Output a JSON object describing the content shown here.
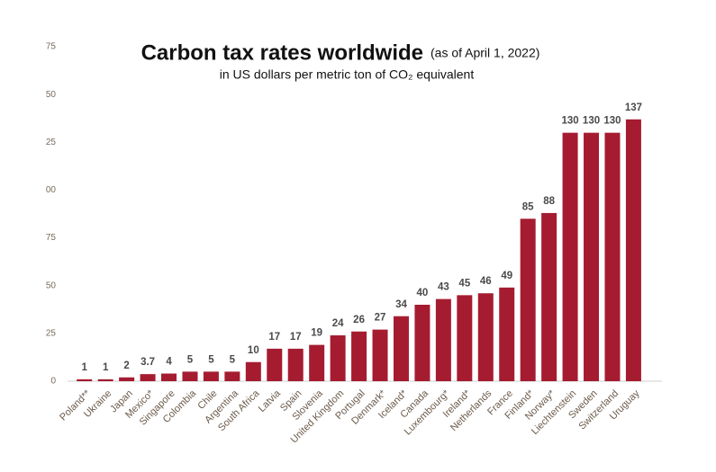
{
  "chart_data": {
    "type": "bar",
    "title": "Carbon tax rates worldwide",
    "title_note": "(as of April 1, 2022)",
    "subtitle": "in US dollars per metric ton of CO₂ equivalent",
    "categories": [
      "Poland**",
      "Ukraine",
      "Japan",
      "Mexico*",
      "Singapore",
      "Colombia",
      "Chile",
      "Argentina",
      "South Africa",
      "Latvia",
      "Spain",
      "Slovenia",
      "United Kingdom",
      "Portugal",
      "Denmark*",
      "Iceland*",
      "Canada",
      "Luxembourg*",
      "Ireland*",
      "Netherlands",
      "France",
      "Finland*",
      "Norway*",
      "Liechtenstein",
      "Sweden",
      "Switzerland",
      "Uruguay"
    ],
    "values": [
      1,
      1,
      2,
      3.7,
      4,
      5,
      5,
      5,
      10,
      17,
      17,
      19,
      24,
      26,
      27,
      34,
      40,
      43,
      45,
      46,
      49,
      85,
      88,
      130,
      130,
      130,
      137
    ],
    "color": "#a51c30",
    "ylim": [
      0,
      175
    ],
    "yticks": [
      0,
      25,
      50,
      {
        "value": 75,
        "label": "75"
      },
      {
        "value": 100,
        "label": "00"
      },
      {
        "value": 125,
        "label": "25"
      },
      {
        "value": 150,
        "label": "50"
      },
      {
        "value": 175,
        "label": "75"
      }
    ],
    "grid": false
  }
}
